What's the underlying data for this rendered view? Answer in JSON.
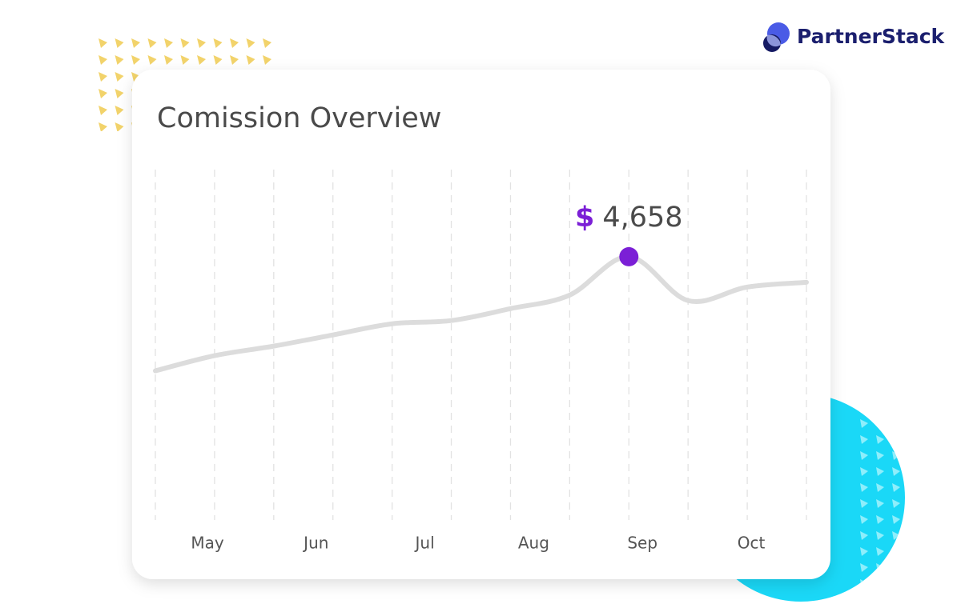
{
  "brand": "PartnerStack",
  "chart_data": {
    "type": "line",
    "title": "Comission Overview",
    "month_labels": [
      "May",
      "Jun",
      "Jul",
      "Aug",
      "Sep",
      "Oct"
    ],
    "values": [
      2640,
      2908,
      3077,
      3275,
      3472,
      3529,
      3740,
      3980,
      4658,
      3882,
      4122,
      4206
    ],
    "value_labels": [
      null,
      null,
      null,
      null,
      null,
      null,
      null,
      null,
      "4,658",
      null,
      null,
      null
    ],
    "value_label_prefix": "$",
    "color": "#dcdcdc",
    "highlight_color": "#7b1fd6",
    "ylim": [
      0,
      6200
    ],
    "grid": true
  }
}
